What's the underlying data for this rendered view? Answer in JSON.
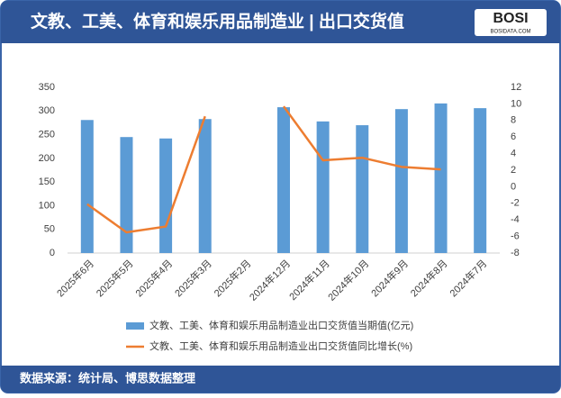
{
  "header": {
    "title": "文教、工美、体育和娱乐用品制造业 | 出口交货值",
    "logo": "BOSI",
    "logo_sub": "BOSIDATA.COM"
  },
  "chart_data": {
    "type": "bar_line",
    "categories": [
      "2025年6月",
      "2025年5月",
      "2025年4月",
      "2025年3月",
      "2025年2月",
      "2024年12月",
      "2024年11月",
      "2024年10月",
      "2024年9月",
      "2024年8月",
      "2024年7月"
    ],
    "series": [
      {
        "name": "文教、工美、体育和娱乐用品制造业出口交货值当期值(亿元)",
        "type": "bar",
        "color": "#5b9bd5",
        "values": [
          281,
          245,
          242,
          283,
          null,
          308,
          278,
          270,
          304,
          316,
          306
        ]
      },
      {
        "name": "文教、工美、体育和娱乐用品制造业出口交货值同比增长(%)",
        "type": "line",
        "axis": "y2",
        "color": "#ed7d31",
        "values": [
          -2.1,
          -5.5,
          -4.8,
          8.5,
          null,
          9.7,
          3.2,
          3.5,
          2.4,
          2.1,
          null
        ]
      }
    ],
    "ylim": [
      0,
      350
    ],
    "yticks": [
      0,
      50,
      100,
      150,
      200,
      250,
      300,
      350
    ],
    "y2lim": [
      -8,
      12
    ],
    "y2ticks": [
      -8,
      -6,
      -4,
      -2,
      0,
      2,
      4,
      6,
      8,
      10,
      12
    ]
  },
  "footer": {
    "source": "数据来源：统计局、博思数据整理"
  }
}
